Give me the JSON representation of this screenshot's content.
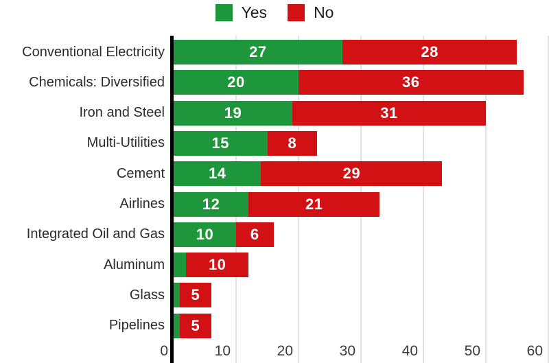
{
  "legend": {
    "items": [
      {
        "label": "Yes",
        "color": "#1e963c"
      },
      {
        "label": "No",
        "color": "#d11114"
      }
    ]
  },
  "chart_data": {
    "type": "bar",
    "orientation": "horizontal",
    "stacked": true,
    "title": "",
    "xlabel": "",
    "ylabel": "",
    "categories": [
      "Conventional Electricity",
      "Chemicals: Diversified",
      "Iron and Steel",
      "Multi-Utilities",
      "Cement",
      "Airlines",
      "Integrated Oil and Gas",
      "Aluminum",
      "Glass",
      "Pipelines"
    ],
    "series": [
      {
        "name": "Yes",
        "color": "#1e963c",
        "values": [
          27,
          20,
          19,
          15,
          14,
          12,
          10,
          2,
          1,
          1
        ],
        "labels": [
          "27",
          "20",
          "19",
          "15",
          "14",
          "12",
          "10",
          "",
          "",
          ""
        ]
      },
      {
        "name": "No",
        "color": "#d11114",
        "values": [
          28,
          36,
          31,
          8,
          29,
          21,
          6,
          10,
          5,
          5
        ],
        "labels": [
          "28",
          "36",
          "31",
          "8",
          "29",
          "21",
          "6",
          "10",
          "5",
          "5"
        ]
      }
    ],
    "xlim": [
      0,
      60
    ],
    "x_ticks": [
      0,
      10,
      20,
      30,
      40,
      50,
      60
    ],
    "grid": "vertical",
    "legend_position": "top",
    "axis_line_color": "#000000",
    "gridline_color": "#e2e2e2",
    "value_label_color": "#ffffff"
  }
}
